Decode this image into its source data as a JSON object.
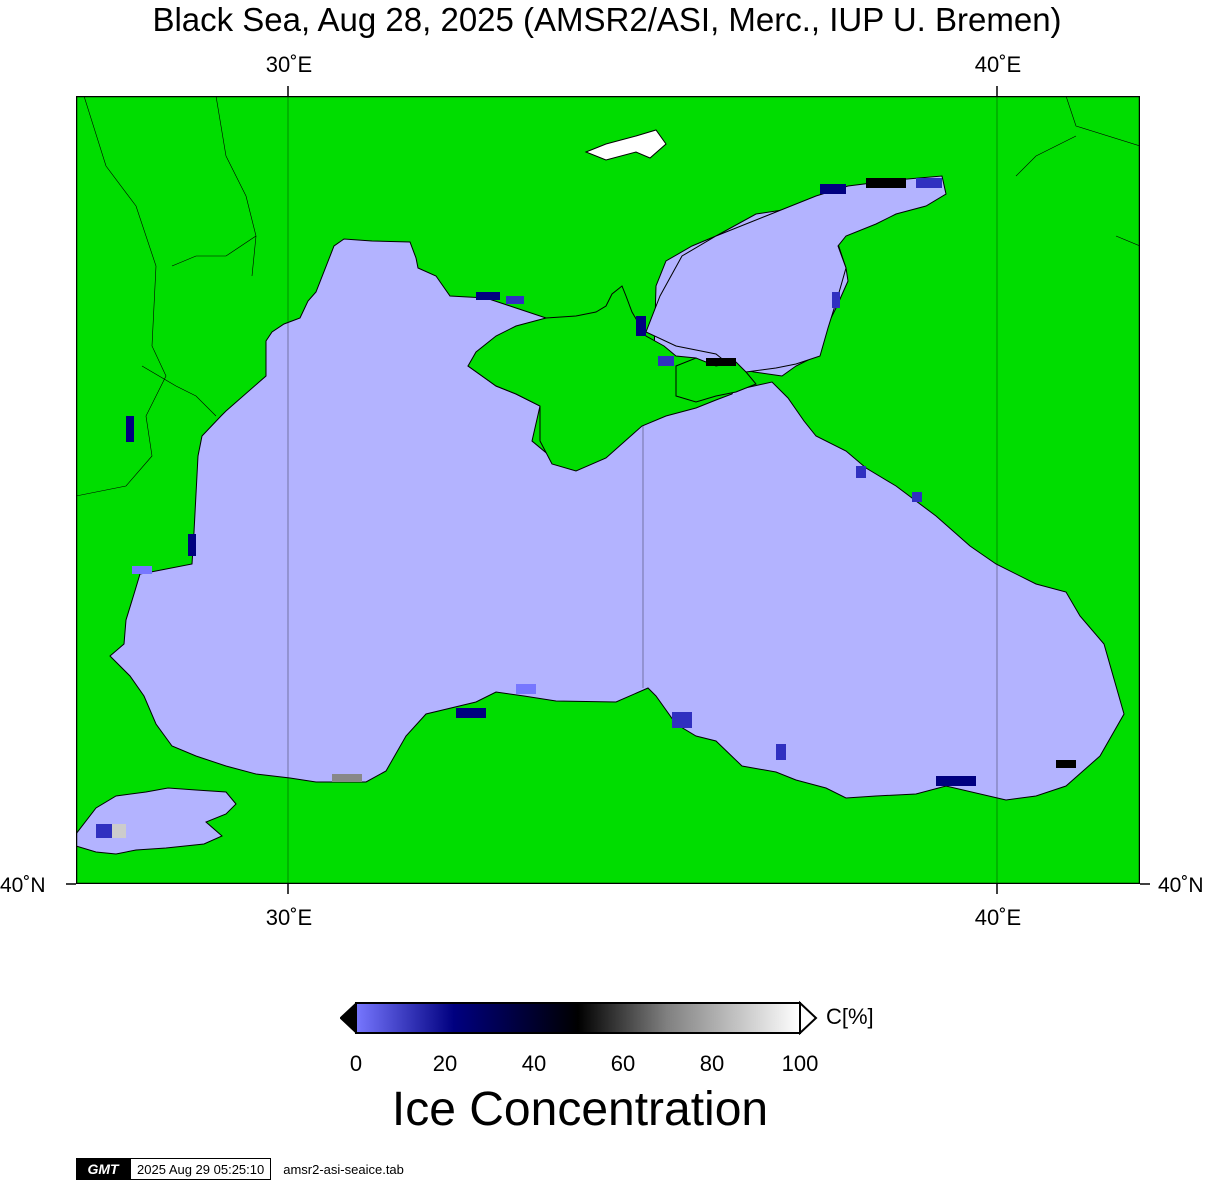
{
  "title": "Black Sea, Aug 28, 2025 (AMSR2/ASI, Merc., IUP U. Bremen)",
  "axes": {
    "top_ticks": [
      "30˚E",
      "40˚E"
    ],
    "bottom_ticks": [
      "30˚E",
      "40˚E"
    ],
    "left_tick": "40˚N",
    "right_tick": "40˚N"
  },
  "colors": {
    "land": "#00dd00",
    "sea_low_ice": "#b3b3ff",
    "frame": "#000000",
    "white": "#ffffff"
  },
  "colorbar": {
    "labels": [
      "0",
      "20",
      "40",
      "60",
      "80",
      "100"
    ],
    "unit": "C[%]",
    "title": "Ice Concentration",
    "stops": [
      "#7777ff",
      "#000080",
      "#000000",
      "#808080",
      "#ffffff"
    ]
  },
  "footer": {
    "logo": "GMT",
    "timestamp": "2025 Aug 29 05:25:10",
    "file": "amsr2-asi-seaice.tab"
  }
}
